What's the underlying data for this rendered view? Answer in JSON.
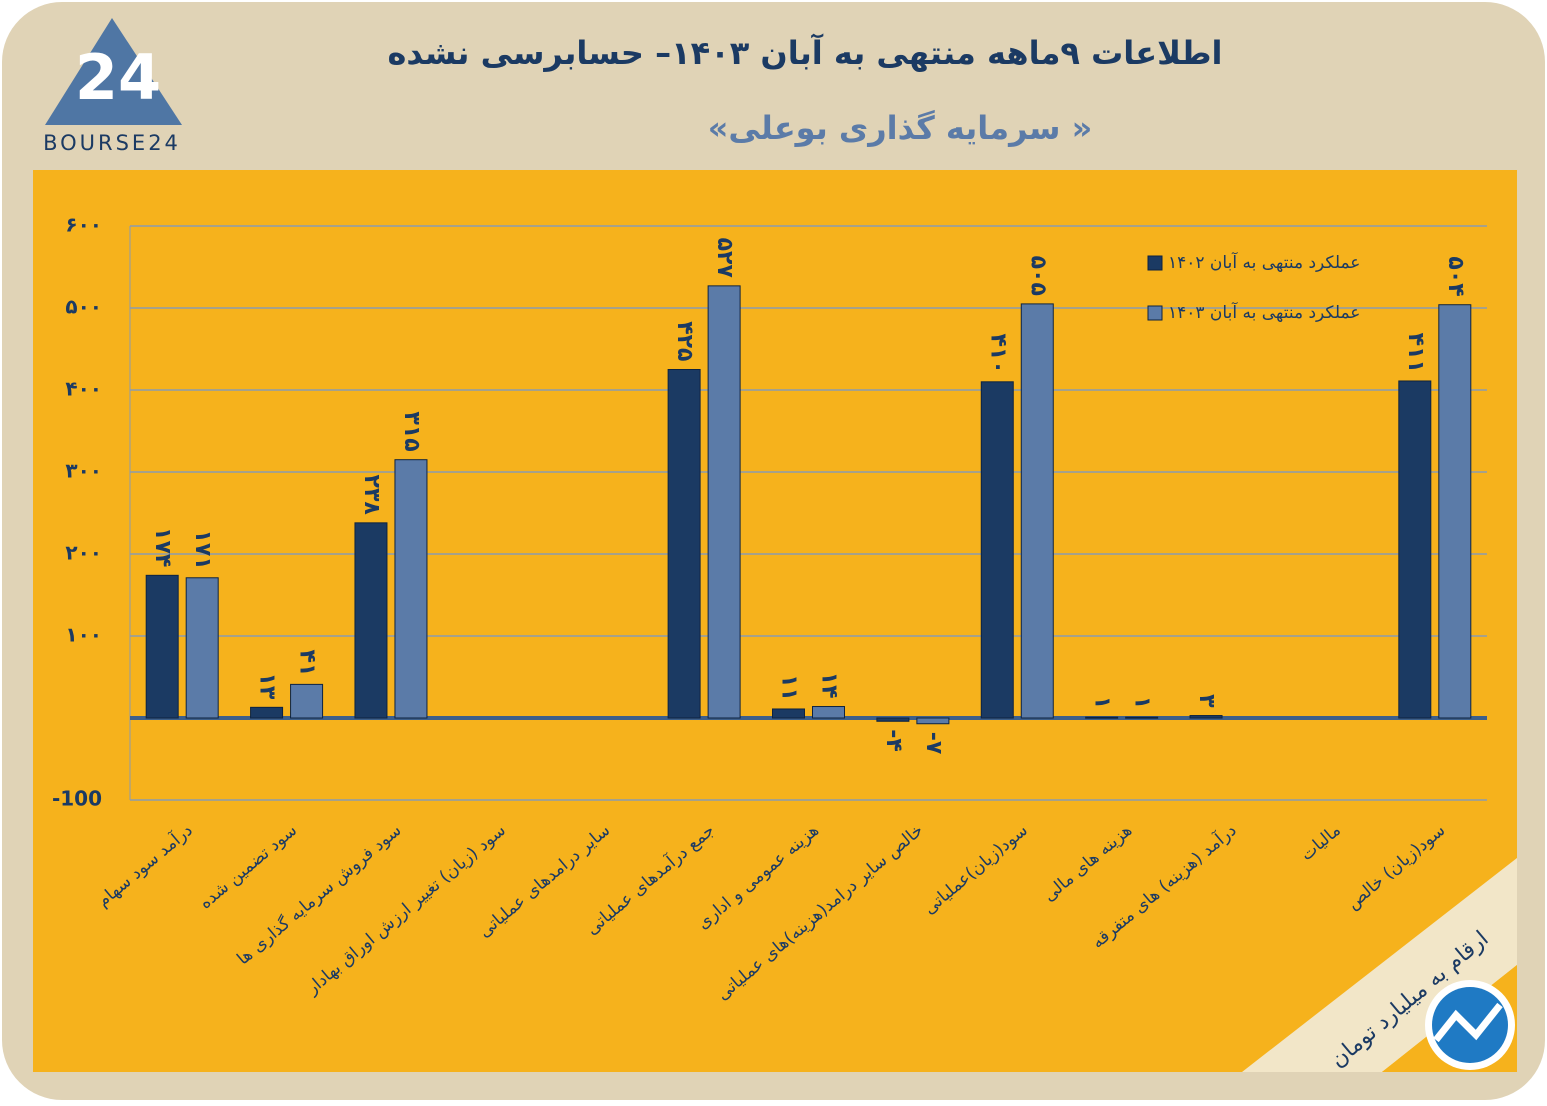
{
  "chart_data": {
    "type": "bar",
    "title": "اطلاعات ۹ماهه منتهی به آبان ۱۴۰۳– حسابرسی نشده",
    "subtitle": "«سرمایه گذاری بوعلی »",
    "logo_mark": "24",
    "logo_text": "BOURSE24",
    "note": "ارقام به میلیارد تومان",
    "categories": [
      "درآمد سود سهام",
      "سود تضمین شده",
      "سود فروش سرمایه گذاری ها",
      "سود (زیان) تغییر ارزش اوراق بهادار",
      "سایر درامدهای عملیاتی",
      "جمع درآمدهای عملیاتی",
      "هزینه عمومی و اداری",
      "خالص سایر درامد(هزینه)های عملیاتی",
      "سود(زیان)عملیاتی",
      "هزینه های مالی",
      "درآمد (هزینه) های متفرقه",
      "مالیات",
      "سود(زیان) خالص"
    ],
    "series": [
      {
        "name": "عملکرد منتهی به آبان ۱۴۰۲",
        "color": "#1b3a63",
        "values": [
          174,
          13,
          238,
          null,
          null,
          425,
          11,
          -4,
          410,
          1,
          3,
          null,
          411
        ],
        "value_labels": [
          "۱۷۴",
          "۱۳",
          "۲۳۸",
          null,
          null,
          "۴۲۵",
          "۱۱",
          "-۴",
          "۴۱۰",
          "۱",
          "۳",
          null,
          "۴۱۱"
        ]
      },
      {
        "name": "عملکرد منتهی به آبان ۱۴۰۳",
        "color": "#5b7ba8",
        "values": [
          171,
          41,
          315,
          null,
          null,
          527,
          14,
          -7,
          505,
          1,
          null,
          null,
          504
        ],
        "value_labels": [
          "۱۷۱",
          "۴۱",
          "۳۱۵",
          null,
          null,
          "۵۲۷",
          "۱۴",
          "-۷",
          "۵۰۵",
          "۱",
          null,
          null,
          "۵۰۴"
        ]
      }
    ],
    "ylim": [
      -100,
      600
    ],
    "yticks": [
      -100,
      {
        "value": 100,
        "label": "۱۰۰"
      },
      {
        "value": 200,
        "label": "۲۰۰"
      },
      {
        "value": 300,
        "label": "۳۰۰"
      },
      {
        "value": 400,
        "label": "۴۰۰"
      },
      {
        "value": 500,
        "label": "۵۰۰"
      },
      {
        "value": 600,
        "label": "۶۰۰"
      }
    ],
    "grid": true,
    "legend": "top-right"
  }
}
